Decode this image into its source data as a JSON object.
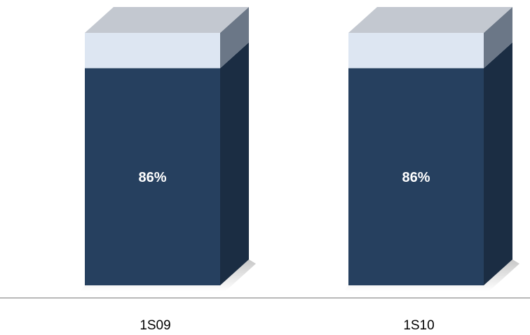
{
  "chart_data": {
    "type": "bar",
    "stacked": true,
    "three_d": true,
    "categories": [
      "1S09",
      "1S10"
    ],
    "series": [
      {
        "values": [
          86,
          86
        ],
        "color": "#26405f",
        "labels": [
          "86%",
          "86%"
        ]
      },
      {
        "values": [
          14,
          14
        ],
        "color": "#dde6f2"
      }
    ],
    "ylim": [
      0,
      100
    ],
    "legend": "none",
    "grid": false
  }
}
